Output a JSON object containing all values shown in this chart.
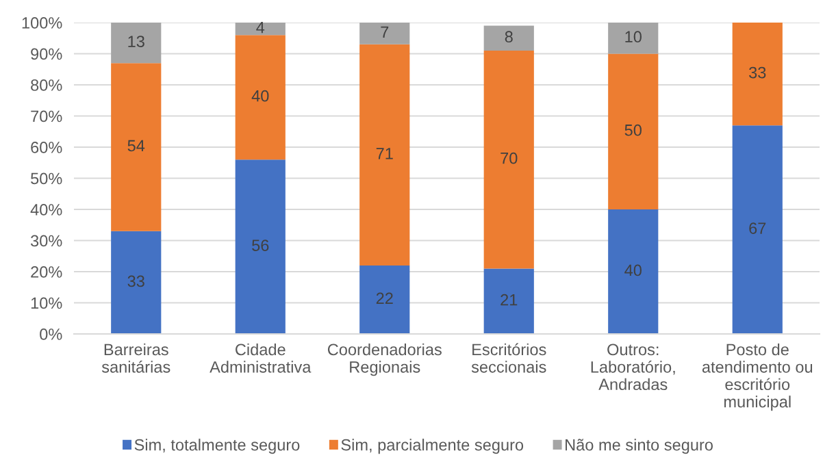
{
  "chart_data": {
    "type": "bar",
    "stacked": true,
    "categories": [
      "Barreiras\nsanitárias",
      "Cidade\nAdministrativa",
      "Coordenadorias\nRegionais",
      "Escritórios\nseccionais",
      "Outros:\nLaboratório,\nAndradas",
      "Posto de\natendimento ou\nescritório\nmunicipal"
    ],
    "series": [
      {
        "name": "Sim, totalmente seguro",
        "color": "#4472c4",
        "values": [
          33,
          56,
          22,
          21,
          40,
          67
        ]
      },
      {
        "name": "Sim, parcialmente seguro",
        "color": "#ed7d31",
        "values": [
          54,
          40,
          71,
          70,
          50,
          33
        ]
      },
      {
        "name": "Não me sinto seguro",
        "color": "#a5a5a5",
        "values": [
          13,
          4,
          7,
          8,
          10,
          null
        ]
      }
    ],
    "ylim": [
      0,
      100
    ],
    "yticks": [
      {
        "value": 0,
        "label": "0%"
      },
      {
        "value": 10,
        "label": "10%"
      },
      {
        "value": 20,
        "label": "20%"
      },
      {
        "value": 30,
        "label": "30%"
      },
      {
        "value": 40,
        "label": "40%"
      },
      {
        "value": 50,
        "label": "50%"
      },
      {
        "value": 60,
        "label": "60%"
      },
      {
        "value": 70,
        "label": "70%"
      },
      {
        "value": 80,
        "label": "80%"
      },
      {
        "value": 90,
        "label": "90%"
      },
      {
        "value": 100,
        "label": "100%"
      }
    ],
    "grid": "y",
    "legend": "bottom",
    "data_labels": true
  }
}
